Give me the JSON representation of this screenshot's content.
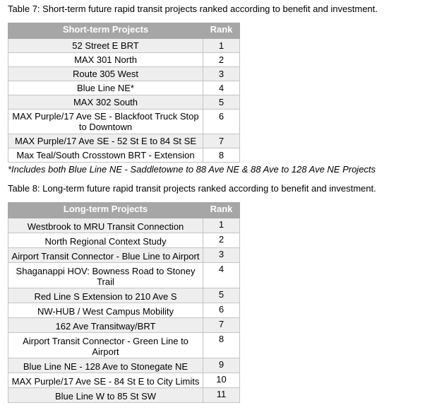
{
  "table7": {
    "caption": "Table 7: Short-term future rapid transit projects ranked according to benefit and investment.",
    "headers": [
      "Short-term Projects",
      "Rank"
    ],
    "rows": [
      [
        "52 Street E BRT",
        "1"
      ],
      [
        "MAX 301 North",
        "2"
      ],
      [
        "Route 305 West",
        "3"
      ],
      [
        "Blue Line NE*",
        "4"
      ],
      [
        "MAX 302 South",
        "5"
      ],
      [
        "MAX Purple/17 Ave SE - Blackfoot Truck Stop to Downtown",
        "6"
      ],
      [
        "MAX Purple/17 Ave SE - 52 St E to 84 St SE",
        "7"
      ],
      [
        "Max Teal/South Crosstown BRT - Extension",
        "8"
      ]
    ],
    "footnote": "*Includes both Blue Line NE - Saddletowne to 88 Ave NE & 88 Ave to 128 Ave NE Projects"
  },
  "table8": {
    "caption": "Table 8: Long-term future rapid transit projects ranked according to benefit and investment.",
    "headers": [
      "Long-term Projects",
      "Rank"
    ],
    "rows": [
      [
        "Westbrook to MRU Transit Connection",
        "1"
      ],
      [
        "North Regional Context Study",
        "2"
      ],
      [
        "Airport Transit Connector - Blue Line to Airport",
        "3"
      ],
      [
        "Shaganappi HOV: Bowness Road to Stoney Trail",
        "4"
      ],
      [
        "Red Line S Extension to 210 Ave S",
        "5"
      ],
      [
        "NW-HUB / West Campus Mobility",
        "6"
      ],
      [
        "162 Ave Transitway/BRT",
        "7"
      ],
      [
        "Airport Transit Connector - Green Line to Airport",
        "8"
      ],
      [
        "Blue Line NE - 128 Ave to Stonegate NE",
        "9"
      ],
      [
        "MAX Purple/17 Ave SE - 84 St E to City Limits",
        "10"
      ],
      [
        "Blue Line W to 85 St SW",
        "11"
      ]
    ]
  }
}
